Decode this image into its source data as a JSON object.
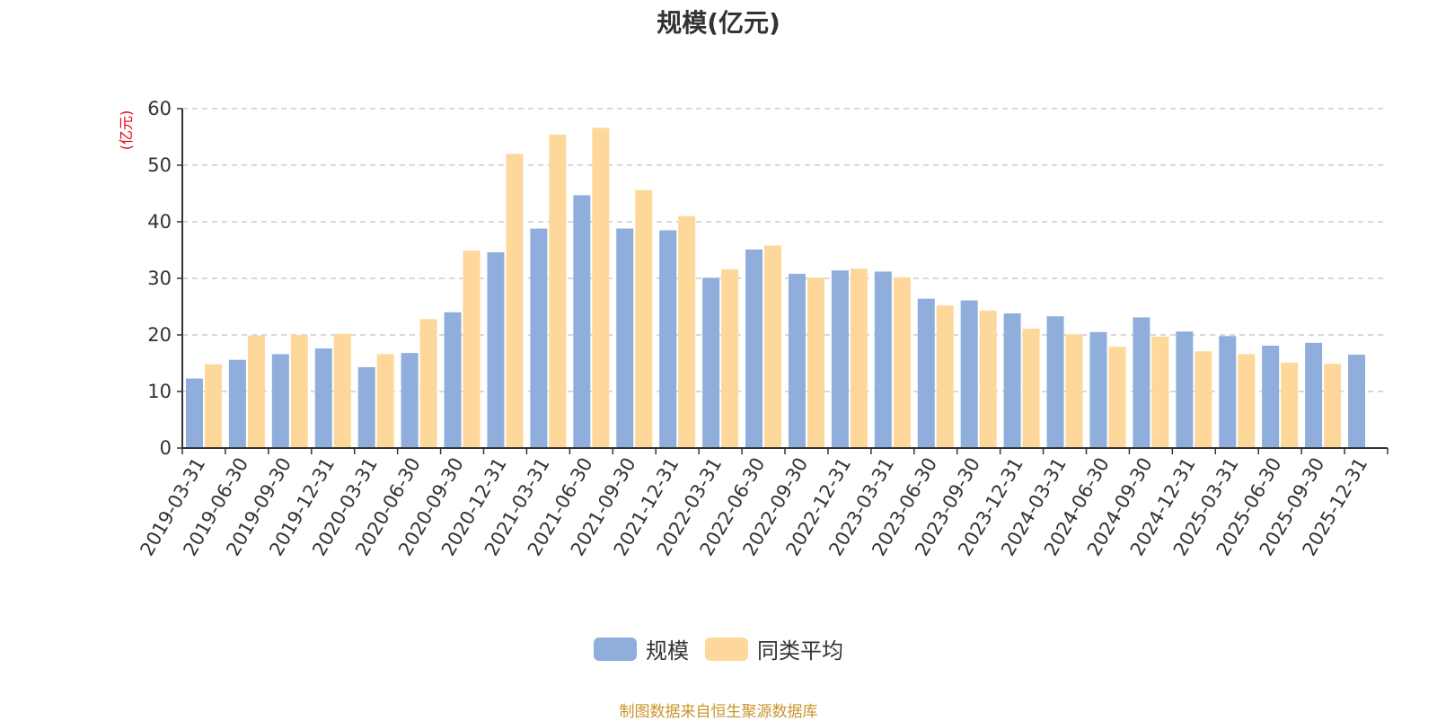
{
  "chart_data": {
    "type": "bar",
    "title": "规模(亿元)",
    "ylabel": "(亿元)",
    "xlabel": "",
    "ylim": [
      0,
      60
    ],
    "yticks": [
      0,
      10,
      20,
      30,
      40,
      50,
      60
    ],
    "grid": true,
    "legend_position": "bottom",
    "categories": [
      "2019-03-31",
      "2019-06-30",
      "2019-09-30",
      "2019-12-31",
      "2020-03-31",
      "2020-06-30",
      "2020-09-30",
      "2020-12-31",
      "2021-03-31",
      "2021-06-30",
      "2021-09-30",
      "2021-12-31",
      "2022-03-31",
      "2022-06-30",
      "2022-09-30",
      "2022-12-31",
      "2023-03-31",
      "2023-06-30",
      "2023-09-30",
      "2023-12-31",
      "2024-03-31",
      "2024-06-30",
      "2024-09-30",
      "2024-12-31",
      "2025-03-31",
      "2025-06-30",
      "2025-09-30",
      "2025-12-31"
    ],
    "series": [
      {
        "name": "规模",
        "color": "#8faedb",
        "values": [
          12.3,
          15.6,
          16.6,
          17.6,
          14.3,
          16.8,
          24.0,
          34.6,
          38.8,
          44.7,
          38.8,
          38.5,
          30.1,
          35.1,
          30.8,
          31.4,
          31.2,
          26.4,
          26.1,
          23.8,
          23.3,
          20.5,
          23.1,
          20.6,
          19.8,
          18.1,
          18.6,
          16.5
        ]
      },
      {
        "name": "同类平均",
        "color": "#fdd89a",
        "values": [
          14.8,
          19.9,
          20.0,
          20.2,
          16.6,
          22.8,
          34.9,
          52.0,
          55.4,
          56.6,
          45.6,
          41.0,
          31.6,
          35.8,
          30.1,
          31.7,
          30.2,
          25.2,
          24.3,
          21.1,
          20.1,
          17.9,
          19.7,
          17.1,
          16.6,
          15.1,
          14.9,
          null
        ]
      }
    ]
  },
  "source_text": "制图数据来自恒生聚源数据库",
  "colors": {
    "axis_unit": "#e60012",
    "source": "#c8952d"
  }
}
